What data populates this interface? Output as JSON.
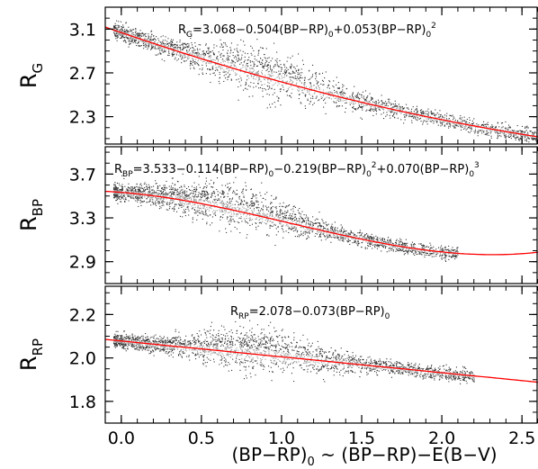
{
  "chart_data": {
    "type": "scatter",
    "xlabel": "(BP−RP)₀ ~ (BP−RP)−E(B−V)",
    "xlabel_parts": [
      "(BP−RP)",
      "0",
      " ~ (BP−RP)−E(B−V)"
    ],
    "xlim": [
      -0.1,
      2.6
    ],
    "xticks": [
      "0.0",
      "0.5",
      "1.0",
      "1.5",
      "2.0",
      "2.5"
    ],
    "xtick_values": [
      0.0,
      0.5,
      1.0,
      1.5,
      2.0,
      2.5
    ],
    "fit_color": "#ff0000",
    "point_color": "#333333",
    "panels": [
      {
        "id": "G",
        "ylabel": "R",
        "ylabel_sub": "G",
        "ylim": [
          2.05,
          3.3
        ],
        "yticks": [
          "2.3",
          "2.7",
          "3.1"
        ],
        "ytick_values": [
          2.3,
          2.7,
          3.1
        ],
        "equation_text": "R_G=3.068−0.504(BP−RP)_0+0.053(BP−RP)_0^2",
        "equation_parts": [
          {
            "t": "R",
            "s": "n"
          },
          {
            "t": "G",
            "s": "sub"
          },
          {
            "t": "=3.068−0.504(BP−RP)",
            "s": "n"
          },
          {
            "t": "0",
            "s": "sub"
          },
          {
            "t": "+0.053(BP−RP)",
            "s": "n"
          },
          {
            "t": "0",
            "s": "sub"
          },
          {
            "t": "2",
            "s": "sup"
          }
        ],
        "coefficients": [
          3.068,
          -0.504,
          0.053
        ],
        "scatter": {
          "x_range": [
            -0.05,
            2.6
          ],
          "hump_center": 0.9,
          "hump_height": 0.1,
          "spread": 0.09
        }
      },
      {
        "id": "BP",
        "ylabel": "R",
        "ylabel_sub": "BP",
        "ylim": [
          2.7,
          3.95
        ],
        "yticks": [
          "2.9",
          "3.3",
          "3.7"
        ],
        "ytick_values": [
          2.9,
          3.3,
          3.7
        ],
        "equation_text": "R_BP=3.533−0.114(BP−RP)_0−0.219(BP−RP)_0^2+0.070(BP−RP)_0^3",
        "equation_parts": [
          {
            "t": "R",
            "s": "n"
          },
          {
            "t": "BP",
            "s": "sub"
          },
          {
            "t": "=3.533−0.114(BP−RP)",
            "s": "n"
          },
          {
            "t": "0",
            "s": "sub"
          },
          {
            "t": "−0.219(BP−RP)",
            "s": "n"
          },
          {
            "t": "0",
            "s": "sub"
          },
          {
            "t": "2",
            "s": "sup"
          },
          {
            "t": "+0.070(BP−RP)",
            "s": "n"
          },
          {
            "t": "0",
            "s": "sub"
          },
          {
            "t": "3",
            "s": "sup"
          }
        ],
        "coefficients": [
          3.533,
          -0.114,
          -0.219,
          0.07
        ],
        "scatter": {
          "x_range": [
            -0.05,
            2.1
          ],
          "hump_center": 0.7,
          "hump_height": 0.1,
          "spread": 0.08
        }
      },
      {
        "id": "RP",
        "ylabel": "R",
        "ylabel_sub": "RP",
        "ylim": [
          1.7,
          2.33
        ],
        "yticks": [
          "1.8",
          "2.0",
          "2.2"
        ],
        "ytick_values": [
          1.8,
          2.0,
          2.2
        ],
        "equation_text": "R_RP=2.078−0.073(BP−RP)_0",
        "equation_parts": [
          {
            "t": "R",
            "s": "n"
          },
          {
            "t": "RP",
            "s": "sub"
          },
          {
            "t": "=2.078−0.073(BP−RP)",
            "s": "n"
          },
          {
            "t": "0",
            "s": "sub"
          }
        ],
        "coefficients": [
          2.078,
          -0.073
        ],
        "scatter": {
          "x_range": [
            -0.05,
            2.2
          ],
          "hump_center": 0.85,
          "hump_height": 0.05,
          "spread": 0.04
        }
      }
    ]
  }
}
